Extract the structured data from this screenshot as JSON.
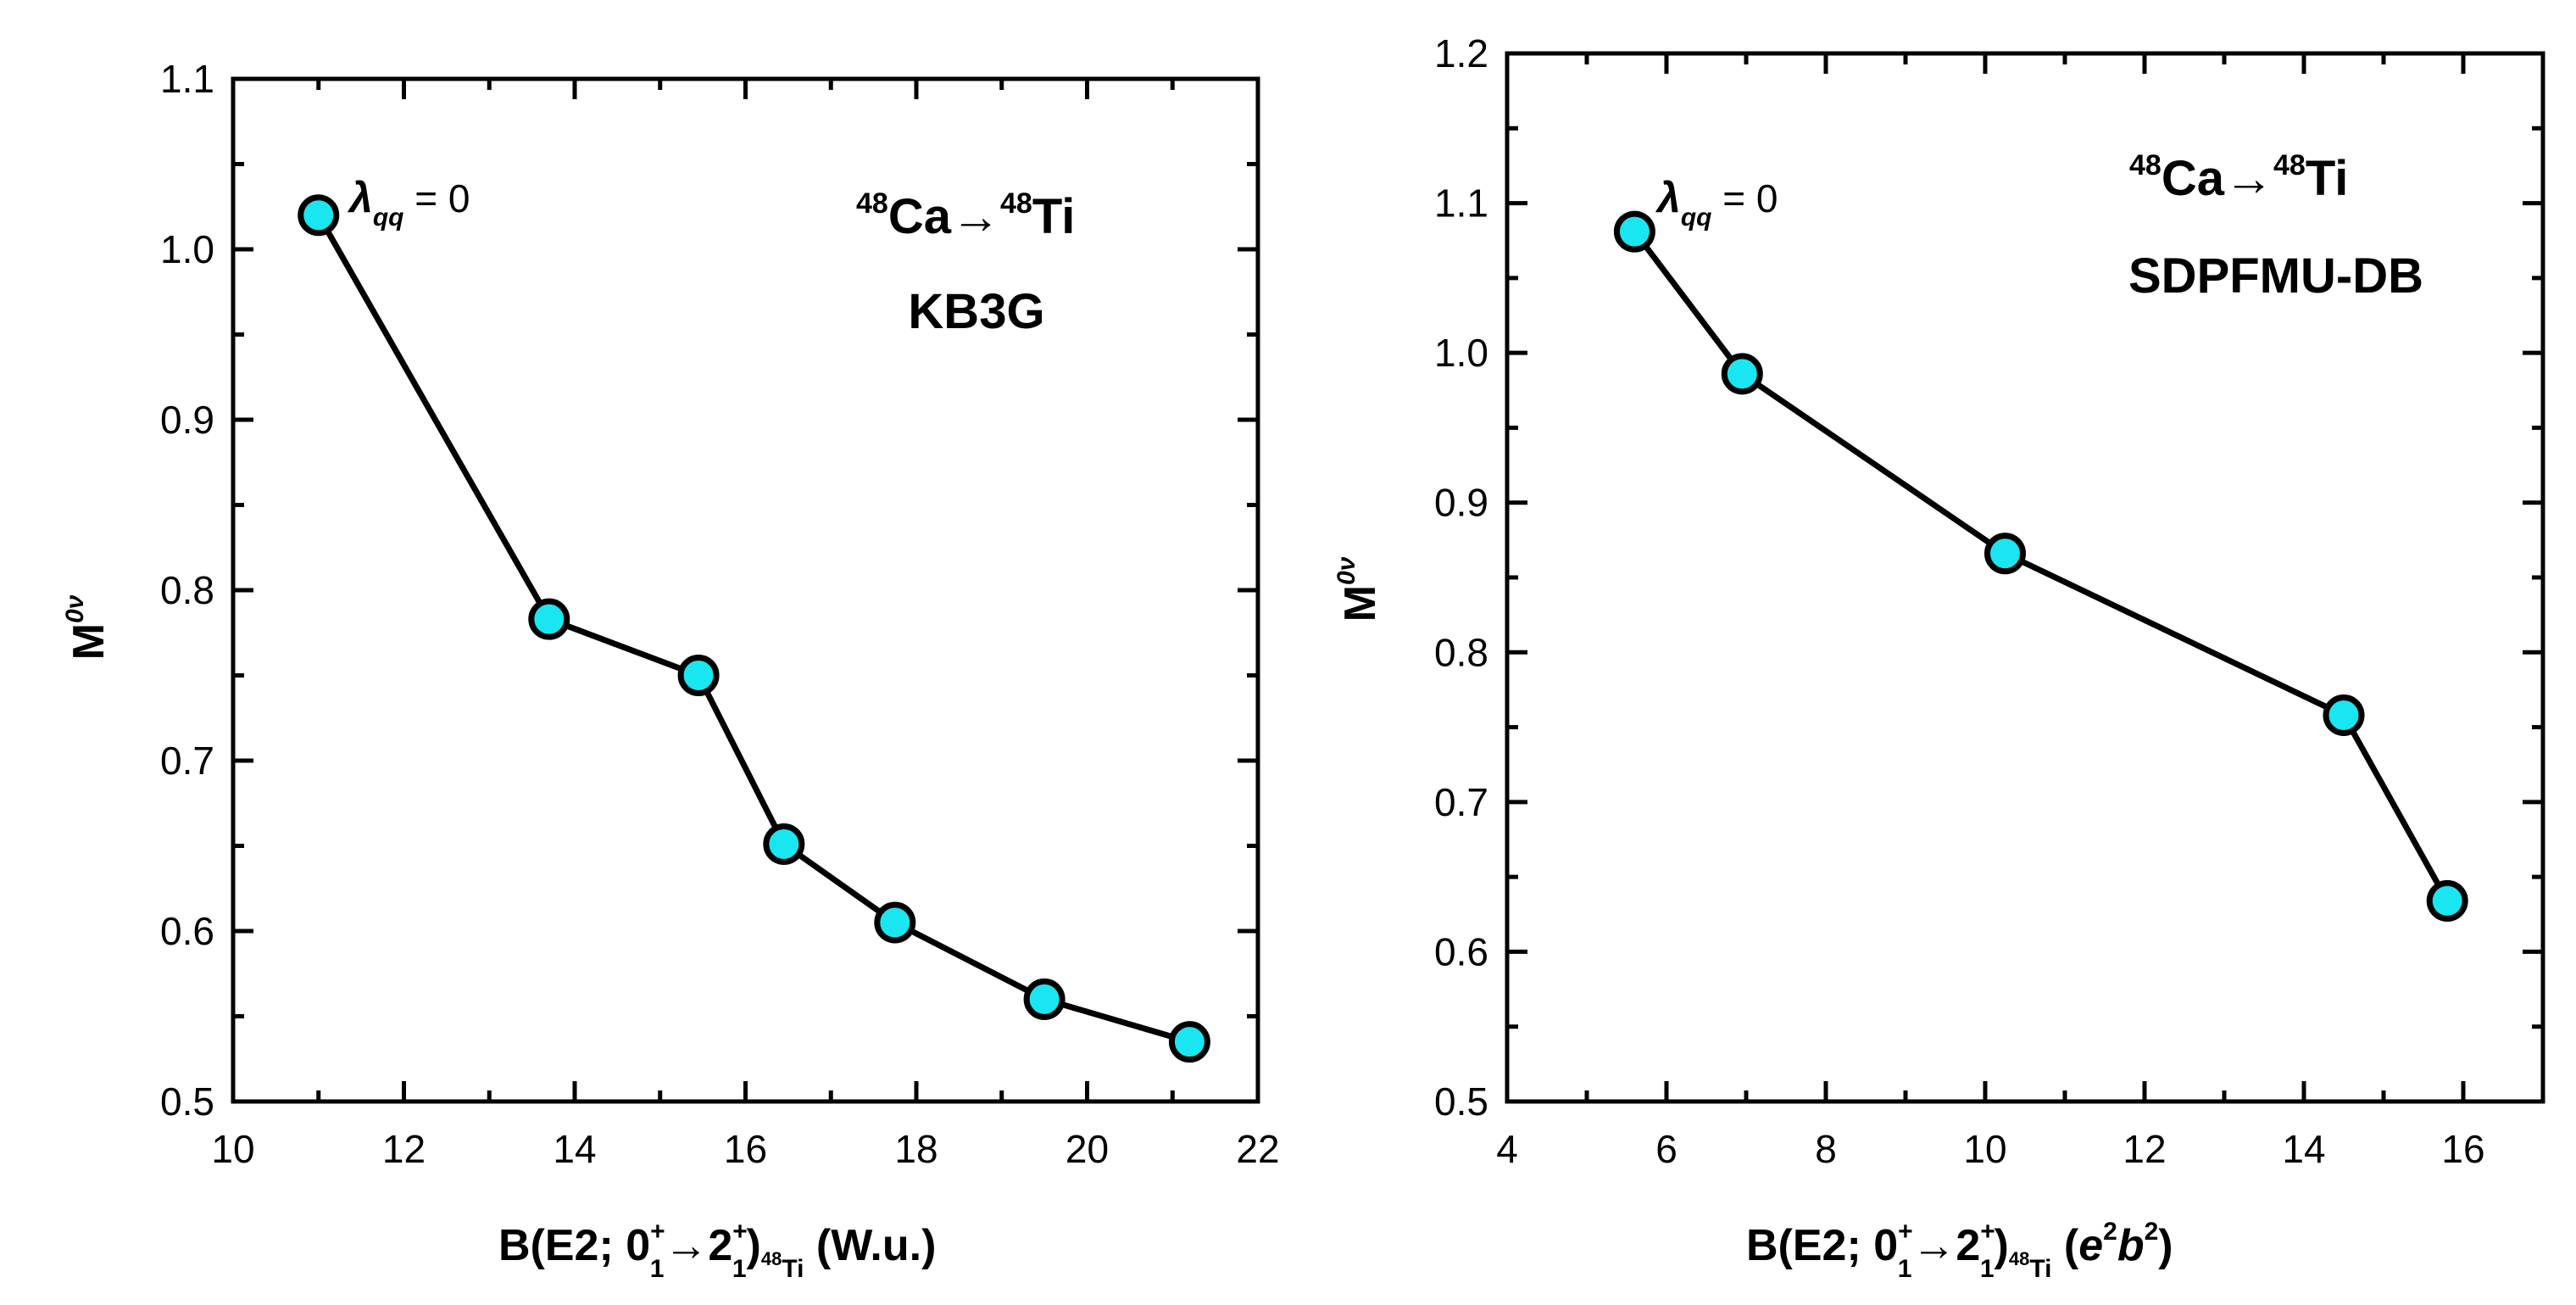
{
  "colors": {
    "marker_fill": "#19E6F0",
    "line": "#000000",
    "axis": "#000000",
    "background": "#ffffff"
  },
  "chart_data": [
    {
      "type": "line",
      "name": "left",
      "x": [
        11.0,
        13.7,
        15.45,
        16.45,
        17.75,
        19.5,
        21.2
      ],
      "y": [
        1.02,
        0.783,
        0.75,
        0.651,
        0.605,
        0.56,
        0.535
      ],
      "xlim": [
        10,
        22
      ],
      "ylim": [
        0.5,
        1.1
      ],
      "xticks": [
        10,
        12,
        14,
        16,
        18,
        20,
        22
      ],
      "yticks": [
        0.5,
        0.6,
        0.7,
        0.8,
        0.9,
        1.0,
        1.1
      ],
      "xtick_labels": [
        "10",
        "12",
        "14",
        "16",
        "18",
        "20",
        "22"
      ],
      "ytick_labels": [
        "0.5",
        "0.6",
        "0.7",
        "0.8",
        "0.9",
        "1.0",
        "1.1"
      ],
      "ylabel": {
        "main": "M",
        "sup": "0ν"
      },
      "xlabel": {
        "pre": "B(E2; 0",
        "sup1": "+",
        "sub1": "1",
        "arrow": "→",
        "mid": "2",
        "sup2": "+",
        "sub2": "1",
        "close": ")",
        "iso_mass": "48",
        "iso_elem": "Ti",
        "unit": " (W.u.)"
      },
      "annotation": {
        "lambda": "λ",
        "lambda_sub": "qq",
        "eq": " = 0"
      },
      "reaction": {
        "m1": "48",
        "e1": "Ca",
        "arrow": "→",
        "m2": "48",
        "e2": "Ti"
      },
      "model": "KB3G"
    },
    {
      "type": "line",
      "name": "right",
      "x": [
        5.6,
        6.95,
        10.25,
        14.5,
        15.8
      ],
      "y": [
        1.081,
        0.986,
        0.866,
        0.758,
        0.634
      ],
      "xlim": [
        4,
        17
      ],
      "ylim": [
        0.5,
        1.2
      ],
      "xticks": [
        4,
        6,
        8,
        10,
        12,
        14,
        16
      ],
      "yticks": [
        0.5,
        0.6,
        0.7,
        0.8,
        0.9,
        1.0,
        1.1,
        1.2
      ],
      "xtick_labels": [
        "4",
        "6",
        "8",
        "10",
        "12",
        "14",
        "16"
      ],
      "ytick_labels": [
        "0.5",
        "0.6",
        "0.7",
        "0.8",
        "0.9",
        "1.0",
        "1.1",
        "1.2"
      ],
      "ylabel": {
        "main": "M",
        "sup": "0ν"
      },
      "xlabel": {
        "pre": "B(E2; 0",
        "sup1": "+",
        "sub1": "1",
        "arrow": "→",
        "mid": "2",
        "sup2": "+",
        "sub2": "1",
        "close": ")",
        "iso_mass": "48",
        "iso_elem": "Ti",
        "unit_open": " (",
        "unit_e": "e",
        "unit_e_sup": "2",
        "unit_b": "b",
        "unit_b_sup": "2",
        "unit_close": ")"
      },
      "annotation": {
        "lambda": "λ",
        "lambda_sub": "qq",
        "eq": " = 0"
      },
      "reaction": {
        "m1": "48",
        "e1": "Ca",
        "arrow": "→",
        "m2": "48",
        "e2": "Ti"
      },
      "model": "SDPFMU-DB"
    }
  ]
}
